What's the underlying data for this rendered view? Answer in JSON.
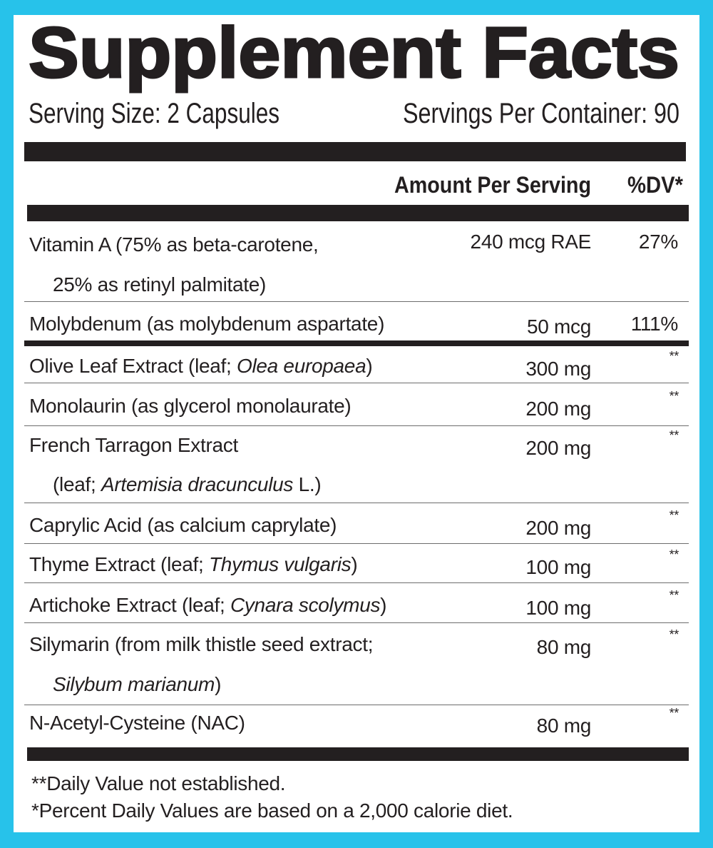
{
  "colors": {
    "border": "#27c2ea",
    "text": "#231f20",
    "background": "#ffffff"
  },
  "header": {
    "title": "Supplement Facts",
    "serving_size": "Serving Size: 2 Capsules",
    "servings_per_container": "Servings Per Container: 90"
  },
  "columns": {
    "amount": "Amount Per Serving",
    "dv": "%DV*"
  },
  "rows": [
    {
      "name": [
        [
          {
            "t": "Vitamin A (75% as beta-carotene,"
          }
        ],
        [
          {
            "t": "25% as retinyl palmitate)"
          }
        ]
      ],
      "amount": "240 mcg RAE",
      "dv": "27%"
    },
    {
      "name": [
        [
          {
            "t": "Molybdenum (as molybdenum aspartate)"
          }
        ]
      ],
      "amount": "50 mcg",
      "dv": "111%"
    },
    {
      "name": [
        [
          {
            "t": "Olive Leaf Extract (leaf; "
          },
          {
            "t": "Olea europaea",
            "i": true
          },
          {
            "t": ")"
          }
        ]
      ],
      "amount": "300 mg",
      "dv": "**"
    },
    {
      "name": [
        [
          {
            "t": "Monolaurin (as glycerol monolaurate)"
          }
        ]
      ],
      "amount": "200 mg",
      "dv": "**"
    },
    {
      "name": [
        [
          {
            "t": "French Tarragon Extract"
          }
        ],
        [
          {
            "t": "(leaf; "
          },
          {
            "t": "Artemisia dracunculus",
            "i": true
          },
          {
            "t": " L.)"
          }
        ]
      ],
      "amount": "200 mg",
      "dv": "**"
    },
    {
      "name": [
        [
          {
            "t": "Caprylic Acid (as calcium caprylate)"
          }
        ]
      ],
      "amount": "200 mg",
      "dv": "**"
    },
    {
      "name": [
        [
          {
            "t": "Thyme Extract (leaf; "
          },
          {
            "t": "Thymus vulgaris",
            "i": true
          },
          {
            "t": ")"
          }
        ]
      ],
      "amount": "100 mg",
      "dv": "**"
    },
    {
      "name": [
        [
          {
            "t": "Artichoke Extract (leaf; "
          },
          {
            "t": "Cynara scolymus",
            "i": true
          },
          {
            "t": ")"
          }
        ]
      ],
      "amount": "100 mg",
      "dv": "**"
    },
    {
      "name": [
        [
          {
            "t": "Silymarin (from milk thistle seed extract;"
          }
        ],
        [
          {
            "t": "Silybum marianum",
            "i": true
          },
          {
            "t": ")"
          }
        ]
      ],
      "amount": "80 mg",
      "dv": "**"
    },
    {
      "name": [
        [
          {
            "t": "N-Acetyl-Cysteine (NAC)"
          }
        ]
      ],
      "amount": "80 mg",
      "dv": "**"
    }
  ],
  "footnotes": [
    "**Daily Value not established.",
    "*Percent Daily Values are based on a 2,000 calorie diet."
  ]
}
